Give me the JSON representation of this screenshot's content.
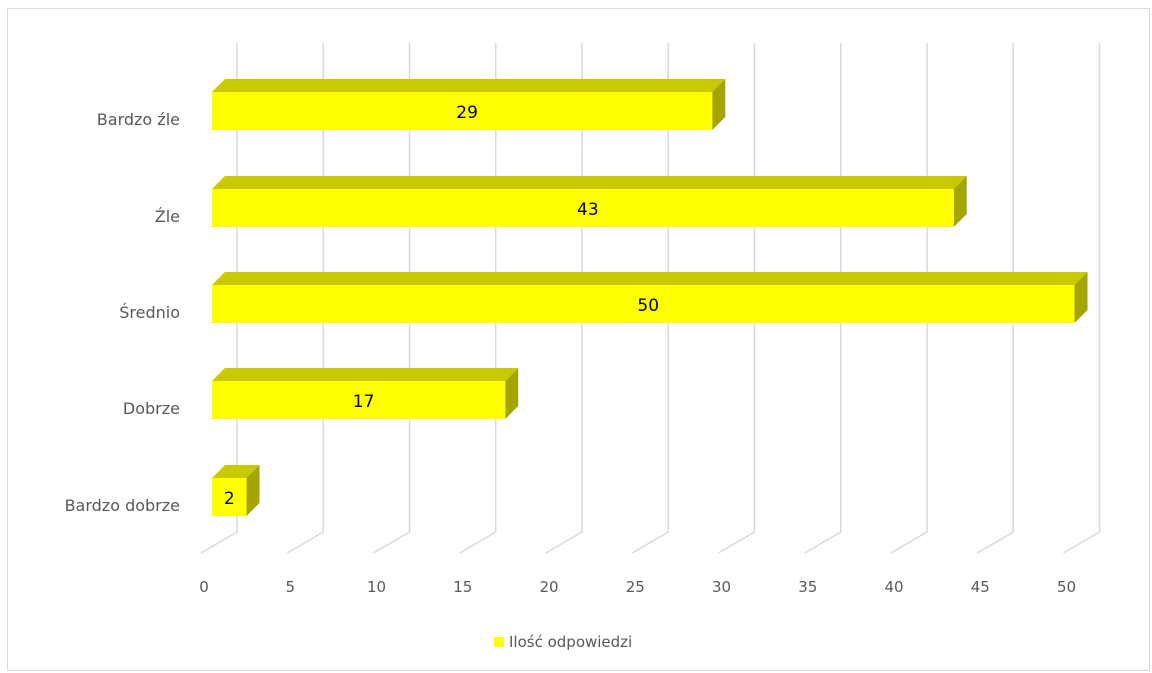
{
  "chart_data": {
    "type": "bar",
    "orientation": "horizontal",
    "style": "3d",
    "categories": [
      "Bardzo źle",
      "Źle",
      "Średnio",
      "Dobrze",
      "Bardzo dobrze"
    ],
    "series": [
      {
        "name": "Ilość odpowiedzi",
        "values": [
          29,
          43,
          50,
          17,
          2
        ],
        "color": "#ffff00"
      }
    ],
    "xlim": [
      0,
      50
    ],
    "xticks": [
      "0",
      "5",
      "10",
      "15",
      "20",
      "25",
      "30",
      "35",
      "40",
      "45",
      "50"
    ],
    "grid": true,
    "legend_position": "bottom",
    "data_labels": true
  },
  "colors": {
    "bar_front": "#ffff00",
    "bar_top": "#c9c900",
    "bar_side": "#a5a500",
    "grid": "#d9d9d9",
    "axis_text": "#595959"
  }
}
